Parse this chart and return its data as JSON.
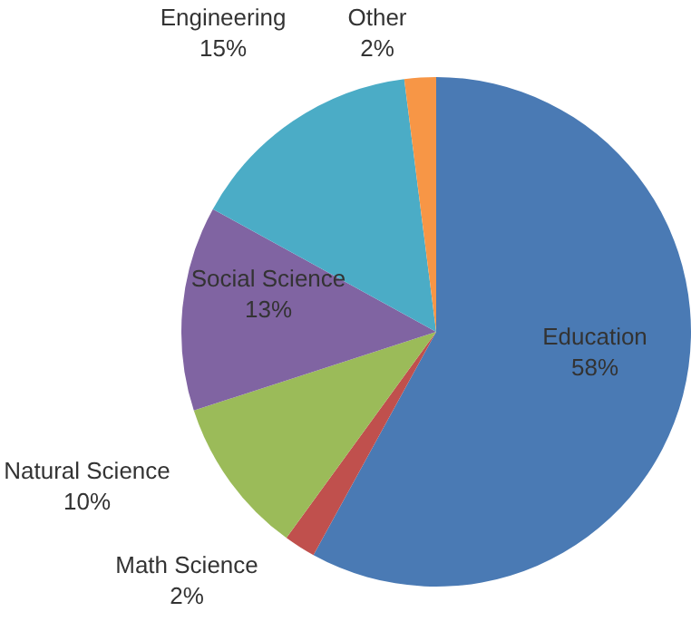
{
  "chart_data": {
    "type": "pie",
    "categories": [
      "Education",
      "Math Science",
      "Natural Science",
      "Social Science",
      "Engineering",
      "Other"
    ],
    "values": [
      58,
      2,
      10,
      13,
      15,
      2
    ],
    "value_labels": [
      "58%",
      "2%",
      "10%",
      "13%",
      "15%",
      "2%"
    ],
    "colors": [
      "#4a7ab4",
      "#c0504d",
      "#9bbb59",
      "#8064a2",
      "#4bacc6",
      "#f79646"
    ],
    "legend": false
  }
}
